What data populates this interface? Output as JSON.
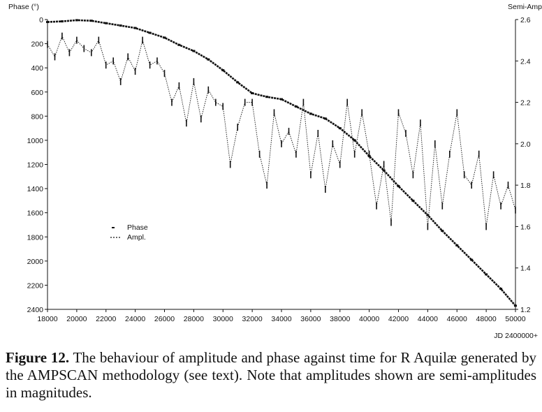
{
  "caption": {
    "label": "Figure 12.",
    "text": "The behaviour of amplitude and phase against time for R Aquilæ generated by the AMPSCAN methodology (see text). Note that amplitudes shown are semi-amplitudes in magnitudes."
  },
  "chart_data": {
    "type": "scatter",
    "title": "",
    "xlabel": "JD 2400000+",
    "ylabel_left": "Phase (°)",
    "ylabel_right": "Semi-Amp",
    "xlim": [
      18000,
      50000
    ],
    "ylim_left": [
      0,
      2400
    ],
    "ylim_left_inverted": true,
    "ylim_right": [
      1.2,
      2.6
    ],
    "x_ticks": [
      18000,
      20000,
      22000,
      24000,
      26000,
      28000,
      30000,
      32000,
      34000,
      36000,
      38000,
      40000,
      42000,
      44000,
      46000,
      48000,
      50000
    ],
    "y_left_ticks": [
      0,
      200,
      400,
      600,
      800,
      1000,
      1200,
      1400,
      1600,
      1800,
      2000,
      2200,
      2400
    ],
    "y_right_ticks": [
      2.6,
      2.4,
      2.2,
      2.0,
      1.8,
      1.6,
      1.4,
      1.2
    ],
    "grid": false,
    "legend_position": "center-left",
    "series": [
      {
        "name": "Phase",
        "axis": "left",
        "marker": "short-dash",
        "x": [
          18000,
          19000,
          20000,
          21000,
          22000,
          23000,
          24000,
          25000,
          26000,
          27000,
          28000,
          29000,
          30000,
          31000,
          32000,
          33000,
          34000,
          35000,
          36000,
          37000,
          38000,
          39000,
          40000,
          41000,
          42000,
          43000,
          44000,
          45000,
          46000,
          47000,
          48000,
          49000,
          50000
        ],
        "values": [
          20,
          15,
          5,
          10,
          30,
          50,
          70,
          110,
          150,
          210,
          260,
          330,
          420,
          520,
          610,
          640,
          660,
          720,
          780,
          820,
          900,
          1000,
          1130,
          1250,
          1380,
          1500,
          1620,
          1750,
          1870,
          1990,
          2110,
          2230,
          2370
        ]
      },
      {
        "name": "Ampl.",
        "axis": "right",
        "marker": "dot-dash",
        "x": [
          18000,
          18500,
          19000,
          19500,
          20000,
          20500,
          21000,
          21500,
          22000,
          22500,
          23000,
          23500,
          24000,
          24500,
          25000,
          25500,
          26000,
          26500,
          27000,
          27500,
          28000,
          28500,
          29000,
          29500,
          30000,
          30500,
          31000,
          31500,
          32000,
          32500,
          33000,
          33500,
          34000,
          34500,
          35000,
          35500,
          36000,
          36500,
          37000,
          37500,
          38000,
          38500,
          39000,
          39500,
          40000,
          40500,
          41000,
          41500,
          42000,
          42500,
          43000,
          43500,
          44000,
          44500,
          45000,
          45500,
          46000,
          46500,
          47000,
          47500,
          48000,
          48500,
          49000,
          49500,
          50000
        ],
        "values": [
          2.48,
          2.42,
          2.52,
          2.44,
          2.5,
          2.46,
          2.44,
          2.5,
          2.38,
          2.4,
          2.3,
          2.42,
          2.35,
          2.5,
          2.38,
          2.4,
          2.34,
          2.2,
          2.28,
          2.1,
          2.3,
          2.12,
          2.26,
          2.2,
          2.18,
          1.9,
          2.08,
          2.2,
          2.2,
          1.95,
          1.8,
          2.15,
          2.0,
          2.06,
          1.95,
          2.2,
          1.85,
          2.05,
          1.78,
          2.0,
          1.9,
          2.2,
          1.95,
          2.15,
          1.95,
          1.7,
          1.9,
          1.62,
          2.15,
          2.05,
          1.85,
          2.1,
          1.6,
          2.0,
          1.7,
          1.95,
          2.15,
          1.85,
          1.8,
          1.95,
          1.6,
          1.85,
          1.7,
          1.8,
          1.68
        ]
      }
    ]
  }
}
